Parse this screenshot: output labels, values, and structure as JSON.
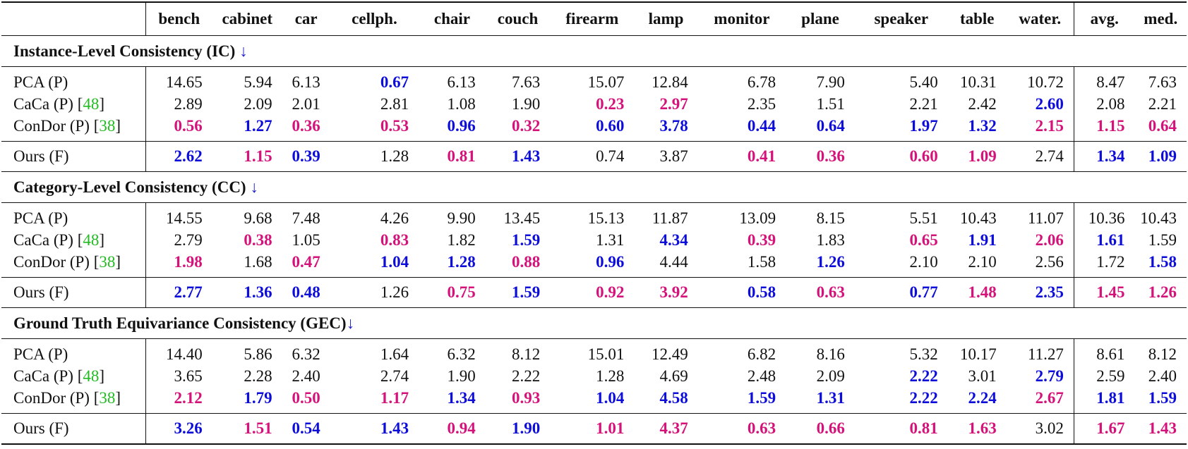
{
  "colors": {
    "best": "#0d0dd9",
    "second": "#d4127a",
    "citation": "#22bb22",
    "arrow": "#2222cc"
  },
  "headers": [
    "bench",
    "cabinet",
    "car",
    "cellph.",
    "chair",
    "couch",
    "firearm",
    "lamp",
    "monitor",
    "plane",
    "speaker",
    "table",
    "water.",
    "avg.",
    "med."
  ],
  "sections": [
    {
      "title": "Instance-Level Consistency (IC)",
      "arrow": "↓",
      "rows": [
        {
          "method": "PCA (P)",
          "cite": "",
          "values": [
            "14.65",
            "5.94",
            "6.13",
            "0.67",
            "6.13",
            "7.63",
            "15.07",
            "12.84",
            "6.78",
            "7.90",
            "5.40",
            "10.31",
            "10.72",
            "8.47",
            "7.63"
          ],
          "styles": [
            "",
            "",
            "",
            "best",
            "",
            "",
            "",
            "",
            "",
            "",
            "",
            "",
            "",
            "",
            ""
          ]
        },
        {
          "method": "CaCa (P)",
          "cite": "48",
          "values": [
            "2.89",
            "2.09",
            "2.01",
            "2.81",
            "1.08",
            "1.90",
            "0.23",
            "2.97",
            "2.35",
            "1.51",
            "2.21",
            "2.42",
            "2.60",
            "2.08",
            "2.21"
          ],
          "styles": [
            "",
            "",
            "",
            "",
            "",
            "",
            "second",
            "second",
            "",
            "",
            "",
            "",
            "best",
            "",
            ""
          ]
        },
        {
          "method": "ConDor (P)",
          "cite": "38",
          "values": [
            "0.56",
            "1.27",
            "0.36",
            "0.53",
            "0.96",
            "0.32",
            "0.60",
            "3.78",
            "0.44",
            "0.64",
            "1.97",
            "1.32",
            "2.15",
            "1.15",
            "0.64"
          ],
          "styles": [
            "second",
            "best",
            "second",
            "second",
            "best",
            "second",
            "best",
            "best",
            "best",
            "best",
            "best",
            "best",
            "second",
            "second",
            "second"
          ]
        },
        {
          "method": "Ours (F)",
          "cite": "",
          "values": [
            "2.62",
            "1.15",
            "0.39",
            "1.28",
            "0.81",
            "1.43",
            "0.74",
            "3.87",
            "0.41",
            "0.36",
            "0.60",
            "1.09",
            "2.74",
            "1.34",
            "1.09"
          ],
          "styles": [
            "best",
            "second",
            "best",
            "",
            "second",
            "best",
            "",
            "",
            "second",
            "second",
            "second",
            "second",
            "",
            "best",
            "best"
          ]
        }
      ]
    },
    {
      "title": "Category-Level Consistency (CC)",
      "arrow": "↓",
      "rows": [
        {
          "method": "PCA (P)",
          "cite": "",
          "values": [
            "14.55",
            "9.68",
            "7.48",
            "4.26",
            "9.90",
            "13.45",
            "15.13",
            "11.87",
            "13.09",
            "8.15",
            "5.51",
            "10.43",
            "11.07",
            "10.36",
            "10.43"
          ],
          "styles": [
            "",
            "",
            "",
            "",
            "",
            "",
            "",
            "",
            "",
            "",
            "",
            "",
            "",
            "",
            ""
          ]
        },
        {
          "method": "CaCa (P)",
          "cite": "48",
          "values": [
            "2.79",
            "0.38",
            "1.05",
            "0.83",
            "1.82",
            "1.59",
            "1.31",
            "4.34",
            "0.39",
            "1.83",
            "0.65",
            "1.91",
            "2.06",
            "1.61",
            "1.59"
          ],
          "styles": [
            "",
            "second",
            "",
            "second",
            "",
            "best",
            "",
            "best",
            "second",
            "",
            "second",
            "best",
            "second",
            "best",
            ""
          ]
        },
        {
          "method": "ConDor (P)",
          "cite": "38",
          "values": [
            "1.98",
            "1.68",
            "0.47",
            "1.04",
            "1.28",
            "0.88",
            "0.96",
            "4.44",
            "1.58",
            "1.26",
            "2.10",
            "2.10",
            "2.56",
            "1.72",
            "1.58"
          ],
          "styles": [
            "second",
            "",
            "second",
            "best",
            "best",
            "second",
            "best",
            "",
            "",
            "best",
            "",
            "",
            "",
            "",
            "best"
          ]
        },
        {
          "method": "Ours (F)",
          "cite": "",
          "values": [
            "2.77",
            "1.36",
            "0.48",
            "1.26",
            "0.75",
            "1.59",
            "0.92",
            "3.92",
            "0.58",
            "0.63",
            "0.77",
            "1.48",
            "2.35",
            "1.45",
            "1.26"
          ],
          "styles": [
            "best",
            "best",
            "best",
            "",
            "second",
            "best",
            "second",
            "second",
            "best",
            "second",
            "best",
            "second",
            "best",
            "second",
            "second"
          ]
        }
      ]
    },
    {
      "title": "Ground Truth Equivariance Consistency (GEC)",
      "arrow": "↓",
      "rows": [
        {
          "method": "PCA (P)",
          "cite": "",
          "values": [
            "14.40",
            "5.86",
            "6.32",
            "1.64",
            "6.32",
            "8.12",
            "15.01",
            "12.49",
            "6.82",
            "8.16",
            "5.32",
            "10.17",
            "11.27",
            "8.61",
            "8.12"
          ],
          "styles": [
            "",
            "",
            "",
            "",
            "",
            "",
            "",
            "",
            "",
            "",
            "",
            "",
            "",
            "",
            ""
          ]
        },
        {
          "method": "CaCa (P)",
          "cite": "48",
          "values": [
            "3.65",
            "2.28",
            "2.40",
            "2.74",
            "1.90",
            "2.22",
            "1.28",
            "4.69",
            "2.48",
            "2.09",
            "2.22",
            "3.01",
            "2.79",
            "2.59",
            "2.40"
          ],
          "styles": [
            "",
            "",
            "",
            "",
            "",
            "",
            "",
            "",
            "",
            "",
            "best",
            "",
            "best",
            "",
            ""
          ]
        },
        {
          "method": "ConDor (P)",
          "cite": "38",
          "values": [
            "2.12",
            "1.79",
            "0.50",
            "1.17",
            "1.34",
            "0.93",
            "1.04",
            "4.58",
            "1.59",
            "1.31",
            "2.22",
            "2.24",
            "2.67",
            "1.81",
            "1.59"
          ],
          "styles": [
            "second",
            "best",
            "second",
            "second",
            "best",
            "second",
            "best",
            "best",
            "best",
            "best",
            "best",
            "best",
            "second",
            "best",
            "best"
          ]
        },
        {
          "method": "Ours (F)",
          "cite": "",
          "values": [
            "3.26",
            "1.51",
            "0.54",
            "1.43",
            "0.94",
            "1.90",
            "1.01",
            "4.37",
            "0.63",
            "0.66",
            "0.81",
            "1.63",
            "3.02",
            "1.67",
            "1.43"
          ],
          "styles": [
            "best",
            "second",
            "best",
            "best",
            "second",
            "best",
            "second",
            "second",
            "second",
            "second",
            "second",
            "second",
            "",
            "second",
            "second"
          ]
        }
      ]
    }
  ]
}
